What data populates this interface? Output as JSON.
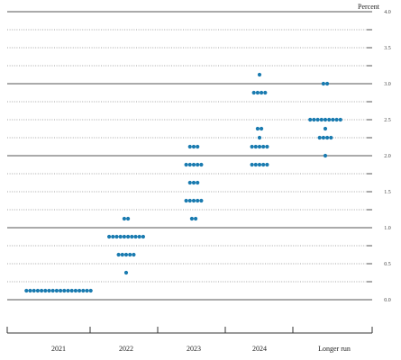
{
  "chart_data": {
    "type": "scatter",
    "subtype": "dot plot",
    "unit_label": "Percent",
    "categories": [
      "2021",
      "2022",
      "2023",
      "2024",
      "Longer run"
    ],
    "ylim": [
      0,
      4.0
    ],
    "y_ticks": [
      "0.0",
      "0.5",
      "1.0",
      "1.5",
      "2.0",
      "2.5",
      "3.0",
      "3.5",
      "4.0"
    ],
    "gridlines": "solid at whole numbers, dotted at every 0.25",
    "dot_color": "#1a7bb0",
    "series": [
      {
        "category": "2021",
        "points": [
          {
            "y": 0.125,
            "count": 18
          }
        ]
      },
      {
        "category": "2022",
        "points": [
          {
            "y": 0.375,
            "count": 1
          },
          {
            "y": 0.625,
            "count": 5
          },
          {
            "y": 0.875,
            "count": 10
          },
          {
            "y": 1.125,
            "count": 2
          }
        ]
      },
      {
        "category": "2023",
        "points": [
          {
            "y": 1.125,
            "count": 2
          },
          {
            "y": 1.375,
            "count": 5
          },
          {
            "y": 1.625,
            "count": 3
          },
          {
            "y": 1.875,
            "count": 5
          },
          {
            "y": 2.125,
            "count": 3
          }
        ]
      },
      {
        "category": "2024",
        "points": [
          {
            "y": 1.875,
            "count": 5
          },
          {
            "y": 2.125,
            "count": 5
          },
          {
            "y": 2.25,
            "count": 1
          },
          {
            "y": 2.375,
            "count": 2
          },
          {
            "y": 2.875,
            "count": 4
          },
          {
            "y": 3.125,
            "count": 1
          }
        ]
      },
      {
        "category": "Longer run",
        "points": [
          {
            "y": 2.0,
            "count": 1
          },
          {
            "y": 2.25,
            "count": 4
          },
          {
            "y": 2.375,
            "count": 1
          },
          {
            "y": 2.5,
            "count": 9
          },
          {
            "y": 3.0,
            "count": 2
          }
        ]
      }
    ]
  }
}
